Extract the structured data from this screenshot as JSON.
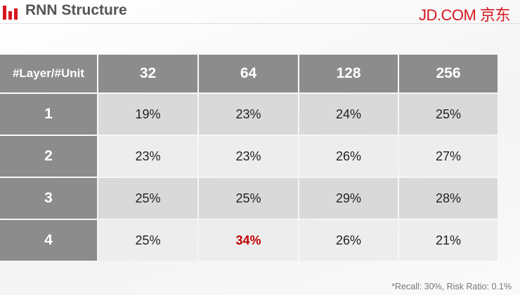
{
  "header": {
    "title": "RNN Structure",
    "logo": "JD.COM 京东"
  },
  "table": {
    "columns": [
      "#Layer/#Unit",
      "32",
      "64",
      "128",
      "256"
    ],
    "rows": [
      [
        "1",
        "19%",
        "23%",
        "24%",
        "25%"
      ],
      [
        "2",
        "23%",
        "23%",
        "26%",
        "27%"
      ],
      [
        "3",
        "25%",
        "25%",
        "29%",
        "28%"
      ],
      [
        "4",
        "25%",
        "34%",
        "26%",
        "21%"
      ]
    ]
  },
  "footnote": "*Recall: 30%, Risk Ratio: 0.1%"
}
